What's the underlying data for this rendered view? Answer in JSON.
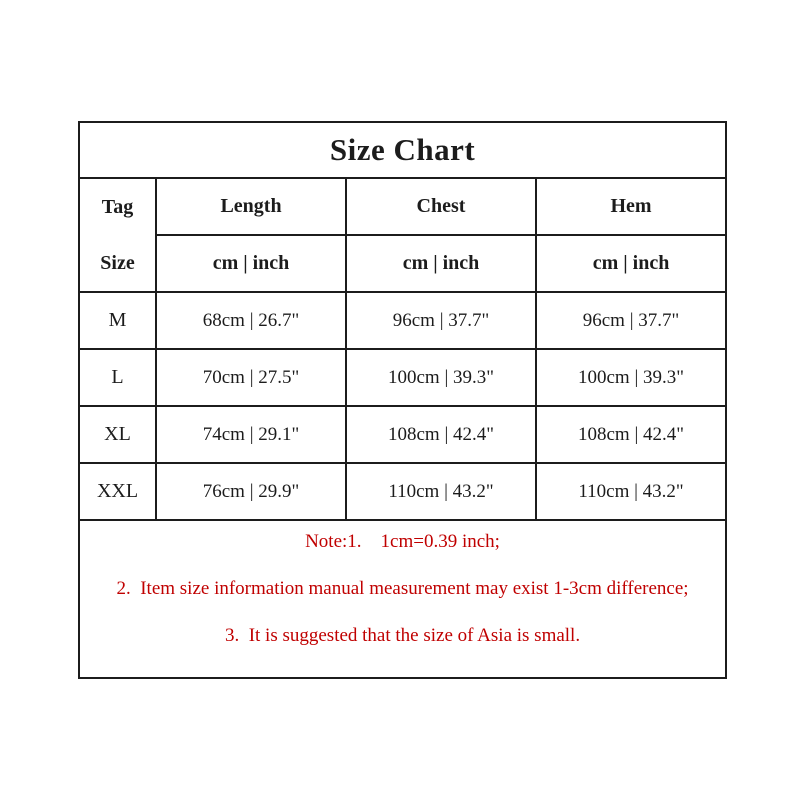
{
  "title": "Size Chart",
  "table": {
    "tag_label": "Tag",
    "size_label": "Size",
    "columns": [
      "Length",
      "Chest",
      "Hem"
    ],
    "unit_label": "cm | inch",
    "rows": [
      {
        "size": "M",
        "length": "68cm | 26.7\"",
        "chest": "96cm | 37.7\"",
        "hem": "96cm | 37.7\""
      },
      {
        "size": "L",
        "length": "70cm | 27.5\"",
        "chest": "100cm | 39.3\"",
        "hem": "100cm | 39.3\""
      },
      {
        "size": "XL",
        "length": "74cm | 29.1\"",
        "chest": "108cm | 42.4\"",
        "hem": "108cm | 42.4\""
      },
      {
        "size": "XXL",
        "length": "76cm | 29.9\"",
        "chest": "110cm | 43.2\"",
        "hem": "110cm | 43.2\""
      }
    ]
  },
  "notes": [
    "Note:1.    1cm=0.39 inch;",
    "2.  Item size information manual measurement may exist 1-3cm difference;",
    "3.  It is suggested that the size of Asia is small."
  ],
  "colors": {
    "border": "#1c1c1c",
    "text": "#1c1c1c",
    "note_red": "#c00000",
    "background": "#ffffff"
  }
}
